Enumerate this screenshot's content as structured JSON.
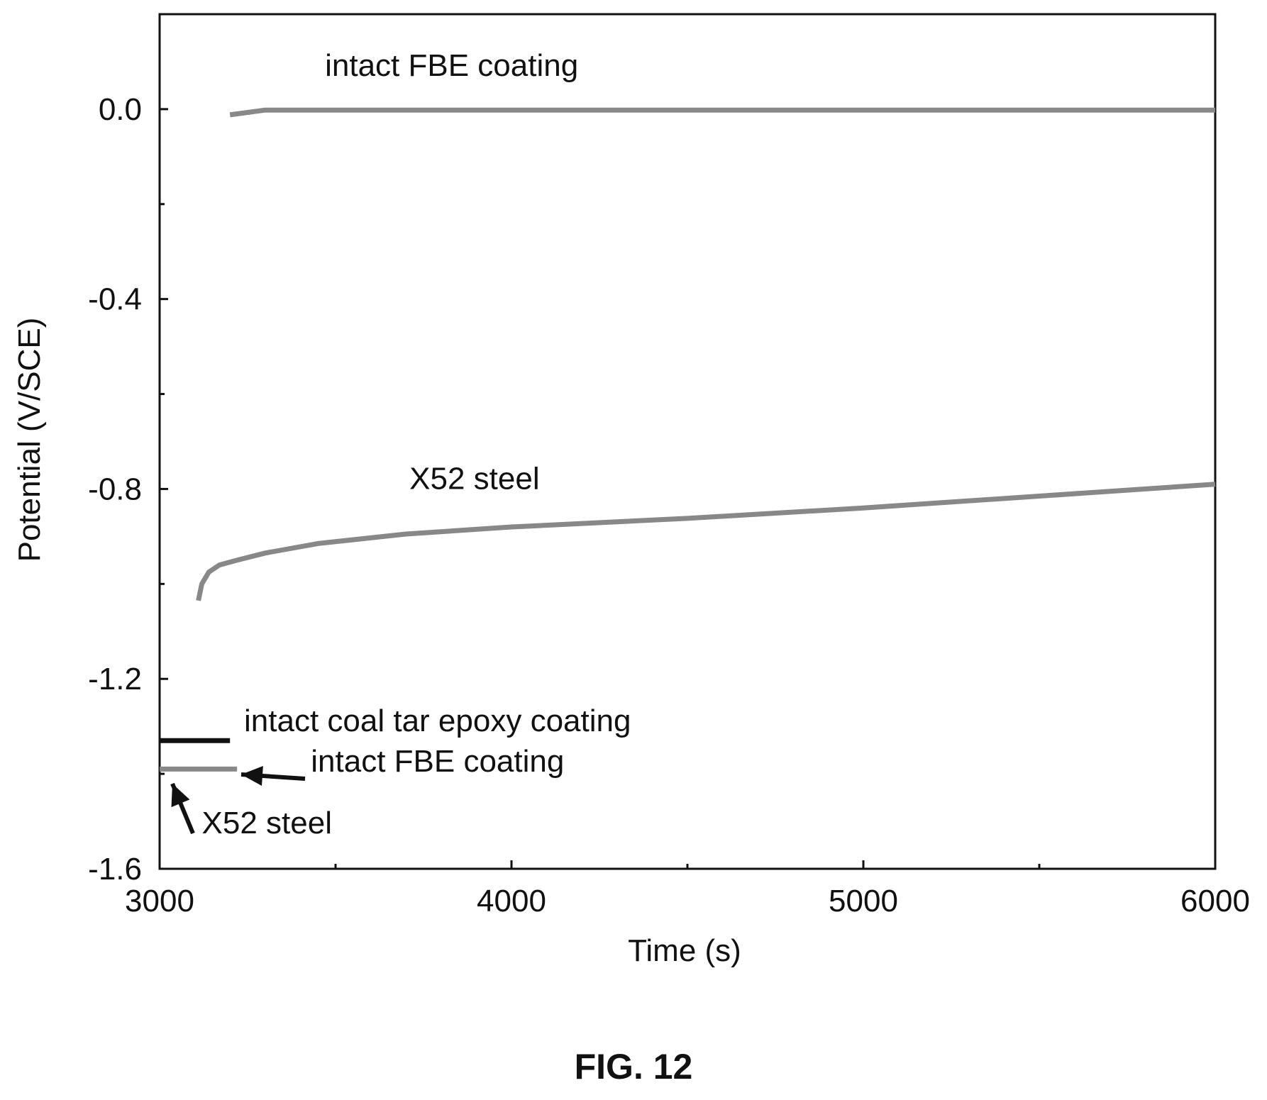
{
  "chart_data": {
    "type": "line",
    "title": "",
    "xlabel": "Time (s)",
    "ylabel": "Potential (V/SCE)",
    "xlim": [
      3000,
      6000
    ],
    "ylim": [
      -1.6,
      0.2
    ],
    "x_ticks": [
      3000,
      4000,
      5000,
      6000
    ],
    "x_tick_labels": [
      "3000",
      "4000",
      "5000",
      "6000"
    ],
    "y_ticks": [
      0.0,
      -0.4,
      -0.8,
      -1.2,
      -1.6
    ],
    "y_tick_labels": [
      "0.0",
      "-0.4",
      "-0.8",
      "-1.2",
      "-1.6"
    ],
    "grid": false,
    "series": [
      {
        "color": "#888888",
        "x": [
          3200,
          3300,
          3600,
          4000,
          4500,
          5000,
          5500,
          6000
        ],
        "y": [
          -0.012,
          -0.002,
          -0.002,
          -0.002,
          -0.002,
          -0.002,
          -0.002,
          -0.002
        ]
      },
      {
        "color": "#888888",
        "x": [
          3110,
          3120,
          3140,
          3170,
          3220,
          3300,
          3450,
          3700,
          4000,
          4500,
          5000,
          5500,
          6000
        ],
        "y": [
          -1.035,
          -1.0,
          -0.975,
          -0.96,
          -0.95,
          -0.935,
          -0.915,
          -0.895,
          -0.88,
          -0.862,
          -0.84,
          -0.815,
          -0.79
        ]
      },
      {
        "color": "#111111",
        "x": [
          3000,
          3200
        ],
        "y": [
          -1.33,
          -1.33
        ]
      },
      {
        "color": "#888888",
        "x": [
          3000,
          3220
        ],
        "y": [
          -1.39,
          -1.39
        ]
      }
    ],
    "annotations": [
      {
        "text": "intact FBE coating",
        "x": 3470,
        "y": 0.07
      },
      {
        "text": "X52 steel",
        "x": 3710,
        "y": -0.8
      },
      {
        "text": "intact coal tar epoxy coating",
        "x": 3240,
        "y": -1.31
      },
      {
        "text": "intact FBE coating",
        "x": 3430,
        "y": -1.395
      },
      {
        "text": "X52 steel",
        "x": 3120,
        "y": -1.525
      }
    ]
  },
  "figure_label": "FIG. 12"
}
